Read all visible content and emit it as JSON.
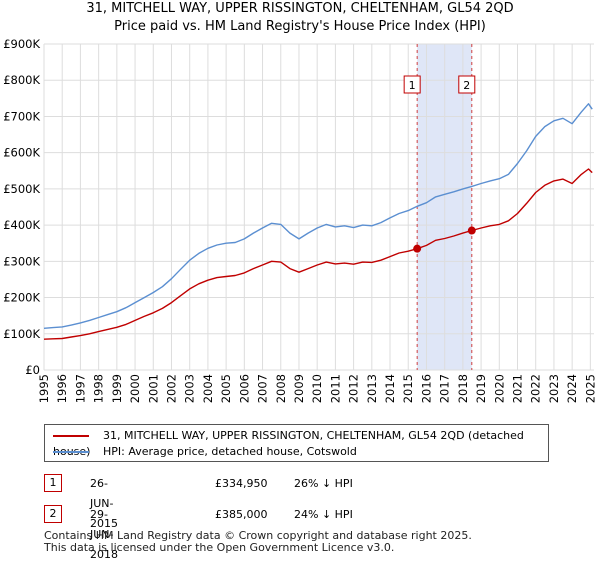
{
  "title": {
    "line1": "31, MITCHELL WAY, UPPER RISSINGTON, CHELTENHAM, GL54 2QD",
    "line2": "Price paid vs. HM Land Registry's House Price Index (HPI)"
  },
  "chart_data": {
    "type": "line",
    "xlim": [
      1995,
      2025.2
    ],
    "ylim": [
      0,
      900000
    ],
    "x_ticks": [
      1995,
      1996,
      1997,
      1998,
      1999,
      2000,
      2001,
      2002,
      2003,
      2004,
      2005,
      2006,
      2007,
      2008,
      2009,
      2010,
      2011,
      2012,
      2013,
      2014,
      2015,
      2016,
      2017,
      2018,
      2019,
      2020,
      2021,
      2022,
      2023,
      2024,
      2025
    ],
    "y_ticks": [
      0,
      100000,
      200000,
      300000,
      400000,
      500000,
      600000,
      700000,
      800000,
      900000
    ],
    "y_tick_labels": [
      "£0",
      "£100K",
      "£200K",
      "£300K",
      "£400K",
      "£500K",
      "£600K",
      "£700K",
      "£800K",
      "£900K"
    ],
    "grid": true,
    "shaded_span": [
      2015.49,
      2018.49
    ],
    "colors": {
      "property": "#c00000",
      "hpi": "#5b8fd1",
      "shade": "#dfe6f7",
      "marker_line": "#d04040",
      "grid": "#dddddd"
    },
    "series": [
      {
        "name": "31, MITCHELL WAY, UPPER RISSINGTON, CHELTENHAM, GL54 2QD (detached house)",
        "color": "#c00000",
        "x": [
          1995.0,
          1995.5,
          1996.0,
          1996.5,
          1997.0,
          1997.5,
          1998.0,
          1998.5,
          1999.0,
          1999.5,
          2000.0,
          2000.5,
          2001.0,
          2001.5,
          2002.0,
          2002.5,
          2003.0,
          2003.5,
          2004.0,
          2004.5,
          2005.0,
          2005.5,
          2006.0,
          2006.5,
          2007.0,
          2007.5,
          2008.0,
          2008.5,
          2009.0,
          2009.5,
          2010.0,
          2010.5,
          2011.0,
          2011.5,
          2012.0,
          2012.5,
          2013.0,
          2013.5,
          2014.0,
          2014.5,
          2015.0,
          2015.49,
          2016.0,
          2016.5,
          2017.0,
          2017.5,
          2018.0,
          2018.49,
          2019.0,
          2019.5,
          2020.0,
          2020.5,
          2021.0,
          2021.5,
          2022.0,
          2022.5,
          2023.0,
          2023.5,
          2024.0,
          2024.5,
          2024.9,
          2025.1
        ],
        "values": [
          85000,
          86000,
          87000,
          91000,
          95000,
          100000,
          106000,
          112000,
          118000,
          126000,
          137000,
          148000,
          158000,
          170000,
          186000,
          205000,
          224000,
          238000,
          248000,
          255000,
          258000,
          261000,
          268000,
          280000,
          290000,
          300000,
          298000,
          280000,
          270000,
          280000,
          290000,
          298000,
          293000,
          295000,
          292000,
          298000,
          297000,
          303000,
          313000,
          323000,
          328000,
          334950,
          344000,
          358000,
          363000,
          370000,
          378000,
          385000,
          392000,
          398000,
          402000,
          412000,
          432000,
          460000,
          490000,
          510000,
          522000,
          527000,
          515000,
          540000,
          555000,
          545000
        ]
      },
      {
        "name": "HPI: Average price, detached house, Cotswold",
        "color": "#5b8fd1",
        "x": [
          1995.0,
          1995.5,
          1996.0,
          1996.5,
          1997.0,
          1997.5,
          1998.0,
          1998.5,
          1999.0,
          1999.5,
          2000.0,
          2000.5,
          2001.0,
          2001.5,
          2002.0,
          2002.5,
          2003.0,
          2003.5,
          2004.0,
          2004.5,
          2005.0,
          2005.5,
          2006.0,
          2006.5,
          2007.0,
          2007.5,
          2008.0,
          2008.5,
          2009.0,
          2009.5,
          2010.0,
          2010.5,
          2011.0,
          2011.5,
          2012.0,
          2012.5,
          2013.0,
          2013.5,
          2014.0,
          2014.5,
          2015.0,
          2015.49,
          2016.0,
          2016.5,
          2017.0,
          2017.5,
          2018.0,
          2018.49,
          2019.0,
          2019.5,
          2020.0,
          2020.5,
          2021.0,
          2021.5,
          2022.0,
          2022.5,
          2023.0,
          2023.5,
          2024.0,
          2024.5,
          2024.9,
          2025.1
        ],
        "values": [
          115000,
          117000,
          119000,
          124000,
          130000,
          137000,
          145000,
          153000,
          161000,
          172000,
          186000,
          200000,
          214000,
          230000,
          252000,
          278000,
          303000,
          322000,
          336000,
          345000,
          350000,
          352000,
          362000,
          378000,
          392000,
          405000,
          402000,
          378000,
          362000,
          378000,
          392000,
          402000,
          395000,
          398000,
          393000,
          400000,
          398000,
          407000,
          420000,
          432000,
          440000,
          452000,
          462000,
          478000,
          485000,
          492000,
          500000,
          507000,
          515000,
          522000,
          528000,
          540000,
          570000,
          605000,
          645000,
          672000,
          688000,
          695000,
          680000,
          712000,
          735000,
          720000
        ]
      }
    ],
    "markers": [
      {
        "label": "1",
        "x": 2015.49,
        "y": 334950
      },
      {
        "label": "2",
        "x": 2018.49,
        "y": 385000
      }
    ]
  },
  "legend": {
    "property": "31, MITCHELL WAY, UPPER RISSINGTON, CHELTENHAM, GL54 2QD (detached house)",
    "hpi": "HPI: Average price, detached house, Cotswold"
  },
  "transactions": [
    {
      "num": "1",
      "date": "26-JUN-2015",
      "price": "£334,950",
      "hpi": "26% ↓ HPI"
    },
    {
      "num": "2",
      "date": "29-JUN-2018",
      "price": "£385,000",
      "hpi": "24% ↓ HPI"
    }
  ],
  "footer": {
    "line1": "Contains HM Land Registry data © Crown copyright and database right 2025.",
    "line2": "This data is licensed under the Open Government Licence v3.0."
  }
}
